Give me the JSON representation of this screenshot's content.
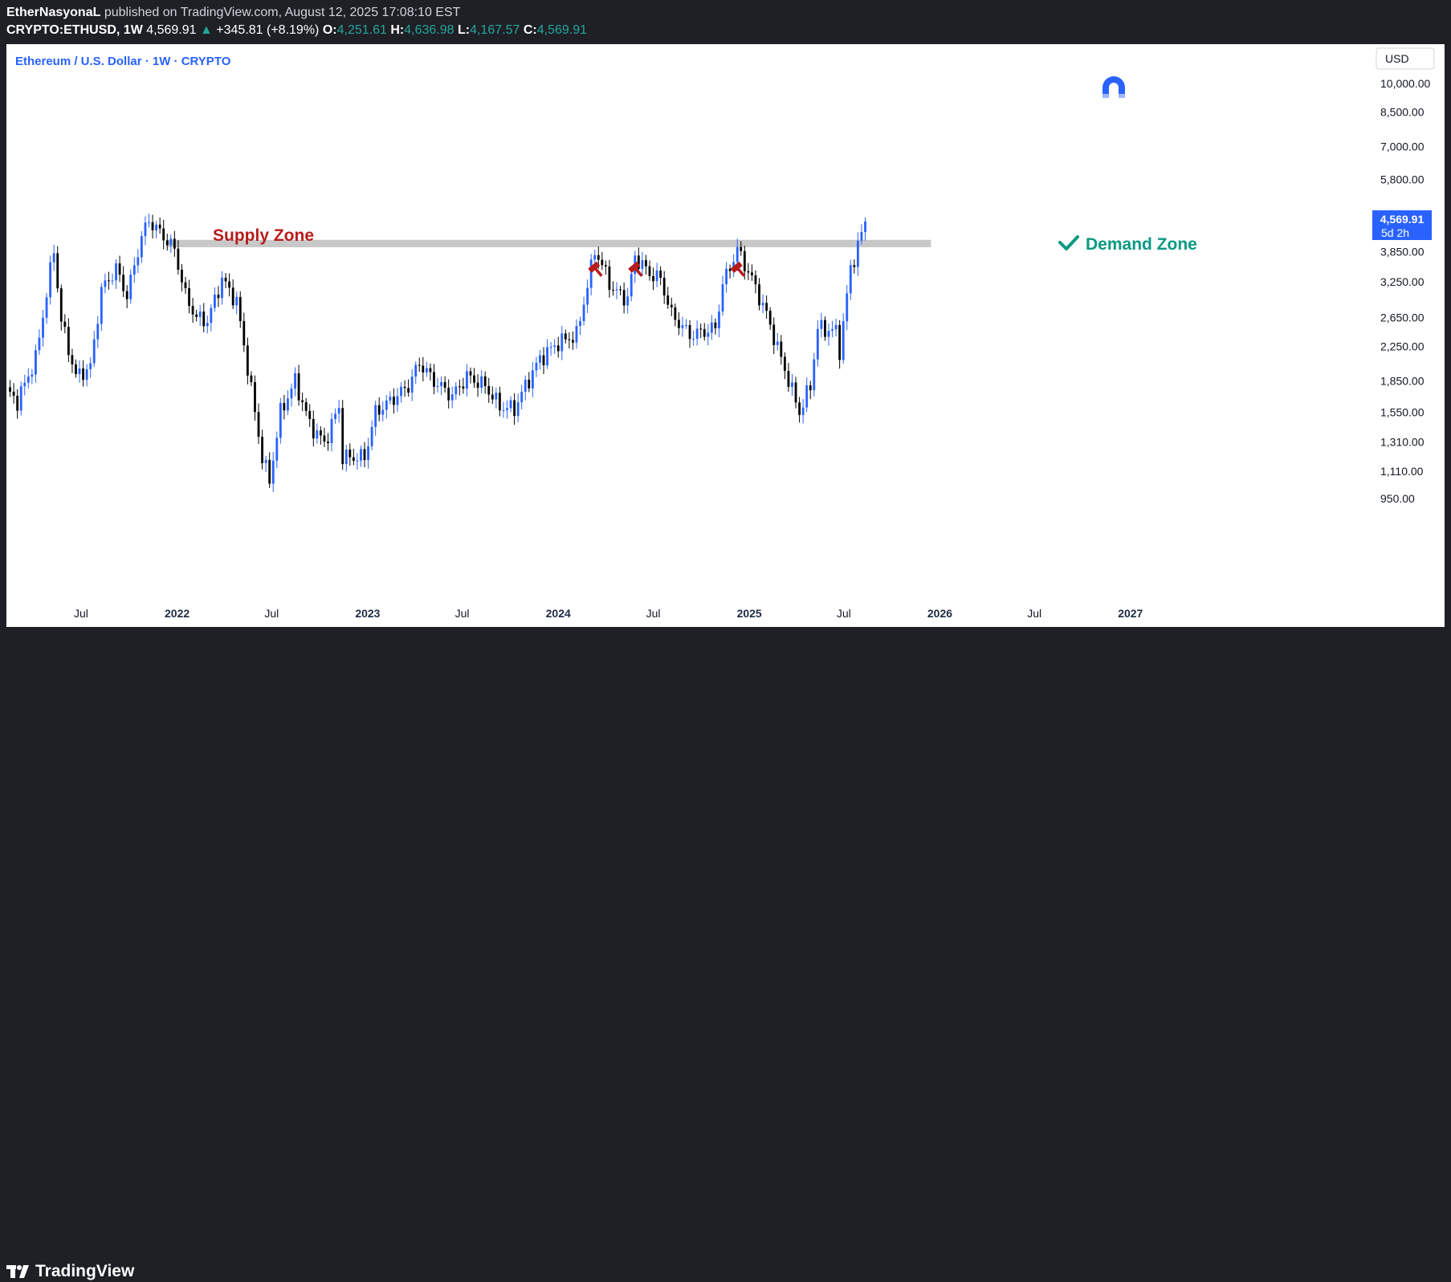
{
  "header": {
    "author": "EtherNasyonaL",
    "published_text": "published on TradingView.com, August 12, 2025 17:08:10 EST",
    "symbol": "CRYPTO:ETHUSD, 1W",
    "last": "4,569.91",
    "arrow": "▲",
    "change": "+345.81 (+8.19%)",
    "o_label": "O:",
    "o_value": "4,251.61",
    "h_label": "H:",
    "h_value": "4,636.98",
    "l_label": "L:",
    "l_value": "4,167.57",
    "c_label": "C:",
    "c_value": "4,569.91"
  },
  "chart_title": "Ethereum / U.S. Dollar · 1W · CRYPTO",
  "currency_button": "USD",
  "price_tag": {
    "price": "4,569.91",
    "countdown": "5d 2h"
  },
  "annotations": {
    "supply": "Supply Zone",
    "demand": "Demand Zone"
  },
  "footer": {
    "brand": "TradingView"
  },
  "colors": {
    "up": "#2962ff",
    "down": "#000000",
    "supply_text": "#b71c1c",
    "demand_text": "#089981",
    "zone": "#c8c8c8",
    "hammer": "#b71c1c"
  },
  "icons": [
    "magnet-icon",
    "hammer-icon",
    "checkmark-icon",
    "tradingview-logo-icon"
  ],
  "chart_data": {
    "type": "candlestick",
    "title": "Ethereum / U.S. Dollar · 1W · CRYPTO",
    "scale": "log",
    "ylim": [
      850,
      11000
    ],
    "y_ticks": [
      10000,
      8500,
      7000,
      5800,
      3850,
      3250,
      2650,
      2250,
      1850,
      1550,
      1310,
      1110,
      950
    ],
    "y_tick_labels": [
      "10,000.00",
      "8,500.00",
      "7,000.00",
      "5,800.00",
      "3,850.00",
      "3,250.00",
      "2,650.00",
      "2,250.00",
      "1,850.00",
      "1,550.00",
      "1,310.00",
      "1,110.00",
      "950.00"
    ],
    "x_range": [
      "2021-02-08",
      "2027-04-19"
    ],
    "x_ticks": [
      {
        "date": "2021-07-01",
        "label": "Jul",
        "bold": false
      },
      {
        "date": "2022-01-01",
        "label": "2022",
        "bold": true
      },
      {
        "date": "2022-07-01",
        "label": "Jul",
        "bold": false
      },
      {
        "date": "2023-01-01",
        "label": "2023",
        "bold": true
      },
      {
        "date": "2023-07-01",
        "label": "Jul",
        "bold": false
      },
      {
        "date": "2024-01-01",
        "label": "2024",
        "bold": true
      },
      {
        "date": "2024-07-01",
        "label": "Jul",
        "bold": false
      },
      {
        "date": "2025-01-01",
        "label": "2025",
        "bold": true
      },
      {
        "date": "2025-07-01",
        "label": "Jul",
        "bold": false
      },
      {
        "date": "2026-01-01",
        "label": "2026",
        "bold": true
      },
      {
        "date": "2026-07-01",
        "label": "Jul",
        "bold": false
      },
      {
        "date": "2027-01-01",
        "label": "2027",
        "bold": true
      }
    ],
    "zone": {
      "low": 3950,
      "high": 4120,
      "from": "2021-12-13",
      "to": "2025-12-15"
    },
    "hammer_markers": [
      "2024-03-11",
      "2024-05-27",
      "2024-12-09"
    ],
    "last_price": 4569.91,
    "waypoints": [
      [
        "2021-02-08",
        1750
      ],
      [
        "2021-03-01",
        1650
      ],
      [
        "2021-04-05",
        2100
      ],
      [
        "2021-05-10",
        3900
      ],
      [
        "2021-05-24",
        2600
      ],
      [
        "2021-06-21",
        1900
      ],
      [
        "2021-07-19",
        2000
      ],
      [
        "2021-08-09",
        3100
      ],
      [
        "2021-09-06",
        3500
      ],
      [
        "2021-09-27",
        3000
      ],
      [
        "2021-10-25",
        4200
      ],
      [
        "2021-11-08",
        4600
      ],
      [
        "2021-12-06",
        4200
      ],
      [
        "2021-12-27",
        3900
      ],
      [
        "2022-01-17",
        3000
      ],
      [
        "2022-02-07",
        2650
      ],
      [
        "2022-02-28",
        2600
      ],
      [
        "2022-03-28",
        3300
      ],
      [
        "2022-04-25",
        2900
      ],
      [
        "2022-05-16",
        2000
      ],
      [
        "2022-06-13",
        1200
      ],
      [
        "2022-06-27",
        1050
      ],
      [
        "2022-07-18",
        1550
      ],
      [
        "2022-08-15",
        1850
      ],
      [
        "2022-09-12",
        1450
      ],
      [
        "2022-10-10",
        1300
      ],
      [
        "2022-11-07",
        1600
      ],
      [
        "2022-11-14",
        1200
      ],
      [
        "2022-12-26",
        1200
      ],
      [
        "2023-01-16",
        1550
      ],
      [
        "2023-02-13",
        1650
      ],
      [
        "2023-03-20",
        1800
      ],
      [
        "2023-04-10",
        2050
      ],
      [
        "2023-05-08",
        1850
      ],
      [
        "2023-06-12",
        1700
      ],
      [
        "2023-07-10",
        1900
      ],
      [
        "2023-08-14",
        1800
      ],
      [
        "2023-09-11",
        1600
      ],
      [
        "2023-10-09",
        1580
      ],
      [
        "2023-10-30",
        1800
      ],
      [
        "2023-11-27",
        2100
      ],
      [
        "2024-01-01",
        2300
      ],
      [
        "2024-02-05",
        2400
      ],
      [
        "2024-03-04",
        3500
      ],
      [
        "2024-03-11",
        3900
      ],
      [
        "2024-04-15",
        3100
      ],
      [
        "2024-05-13",
        2950
      ],
      [
        "2024-05-27",
        3750
      ],
      [
        "2024-06-24",
        3400
      ],
      [
        "2024-07-15",
        3300
      ],
      [
        "2024-08-05",
        2700
      ],
      [
        "2024-09-09",
        2400
      ],
      [
        "2024-10-07",
        2450
      ],
      [
        "2024-10-28",
        2500
      ],
      [
        "2024-11-11",
        3200
      ],
      [
        "2024-12-09",
        3900
      ],
      [
        "2025-01-06",
        3300
      ],
      [
        "2025-02-03",
        2700
      ],
      [
        "2025-03-03",
        2100
      ],
      [
        "2025-04-07",
        1550
      ],
      [
        "2025-04-28",
        1800
      ],
      [
        "2025-05-12",
        2500
      ],
      [
        "2025-06-16",
        2450
      ],
      [
        "2025-06-23",
        2200
      ],
      [
        "2025-07-14",
        3500
      ],
      [
        "2025-08-04",
        4250
      ],
      [
        "2025-08-11",
        4569.91
      ]
    ]
  }
}
